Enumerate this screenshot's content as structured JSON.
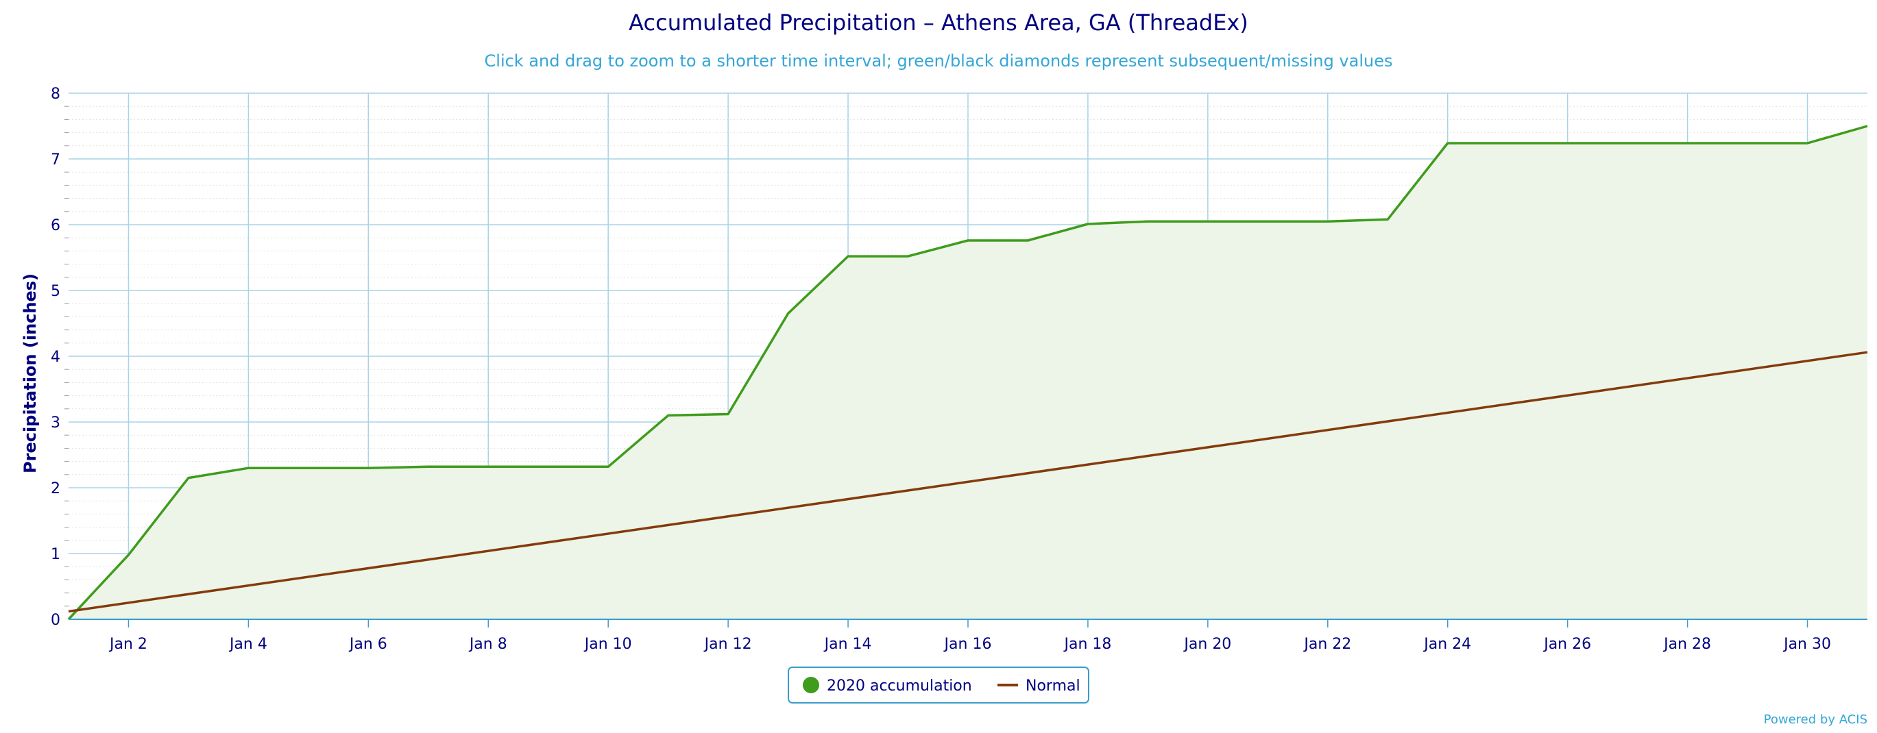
{
  "chart_data": {
    "type": "line",
    "title": "Accumulated Precipitation – Athens Area, GA (ThreadEx)",
    "subtitle": "Click and drag to zoom to a shorter time interval; green/black diamonds represent subsequent/missing values",
    "ylabel": "Precipitation (inches)",
    "xlabel": "",
    "ylim": [
      0,
      8
    ],
    "y_ticks": [
      "0",
      "1",
      "2",
      "3",
      "4",
      "5",
      "6",
      "7",
      "8"
    ],
    "x_tick_labels": [
      "Jan 2",
      "Jan 4",
      "Jan 6",
      "Jan 8",
      "Jan 10",
      "Jan 12",
      "Jan 14",
      "Jan 16",
      "Jan 18",
      "Jan 20",
      "Jan 22",
      "Jan 24",
      "Jan 26",
      "Jan 28",
      "Jan 30"
    ],
    "x_tick_days": [
      2,
      4,
      6,
      8,
      10,
      12,
      14,
      16,
      18,
      20,
      22,
      24,
      26,
      28,
      30
    ],
    "x_range_days": [
      1,
      31
    ],
    "grid": true,
    "legend_position": "bottom-center",
    "series": [
      {
        "name": "2020 accumulation",
        "color": "#3f9c1c",
        "fill_color": "#edf5e8",
        "area": true,
        "x": [
          1,
          2,
          3,
          4,
          5,
          6,
          7,
          8,
          9,
          10,
          11,
          12,
          13,
          14,
          15,
          16,
          17,
          18,
          19,
          20,
          21,
          22,
          23,
          24,
          25,
          26,
          27,
          28,
          29,
          30,
          31
        ],
        "values": [
          0.0,
          0.98,
          2.15,
          2.3,
          2.3,
          2.3,
          2.32,
          2.32,
          2.32,
          2.32,
          3.1,
          3.12,
          4.65,
          5.52,
          5.52,
          5.76,
          5.76,
          6.01,
          6.05,
          6.05,
          6.05,
          6.05,
          6.08,
          7.24,
          7.24,
          7.24,
          7.24,
          7.24,
          7.24,
          7.24,
          7.5
        ]
      },
      {
        "name": "Normal",
        "color": "#843b0c",
        "area": false,
        "x": [
          1,
          31
        ],
        "values": [
          0.12,
          4.06
        ]
      }
    ]
  },
  "credit": "Powered by ACIS",
  "colors": {
    "grid": "#a9d3e6",
    "grid_minor": "#e2e2e2",
    "axis": "#3b9ccc",
    "legend_border": "#3b9ccc"
  }
}
